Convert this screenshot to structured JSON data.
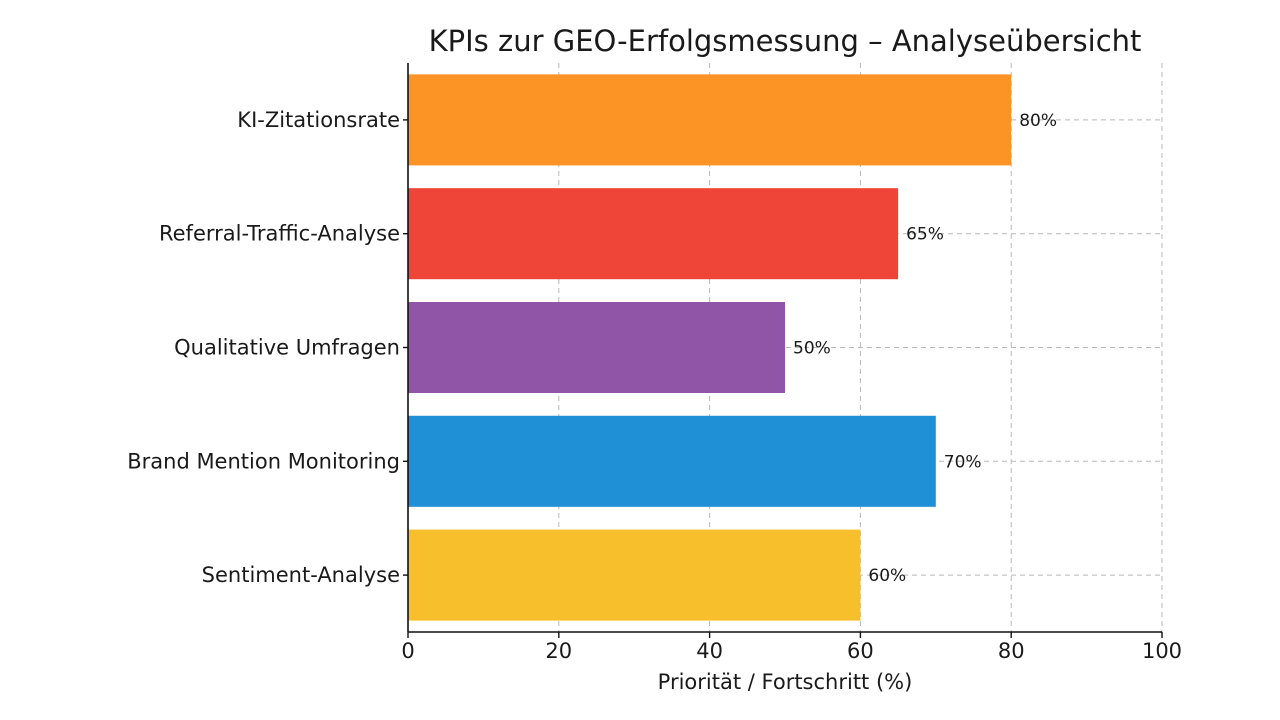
{
  "chart_data": {
    "type": "bar",
    "orientation": "horizontal",
    "title": "KPIs zur GEO-Erfolgsmessung – Analyseübersicht",
    "xlabel": "Priorität / Fortschritt (%)",
    "ylabel": "",
    "xlim": [
      0,
      100
    ],
    "xticks": [
      0,
      20,
      40,
      60,
      80,
      100
    ],
    "grid": true,
    "value_suffix": "%",
    "categories": [
      "KI-Zitationsrate",
      "Referral-Traffic-Analyse",
      "Qualitative Umfragen",
      "Brand Mention Monitoring",
      "Sentiment-Analyse"
    ],
    "values": [
      80,
      65,
      50,
      70,
      60
    ],
    "colors": [
      "#fb9425",
      "#ef4438",
      "#9155a8",
      "#1f90d6",
      "#f7bf2c"
    ]
  }
}
